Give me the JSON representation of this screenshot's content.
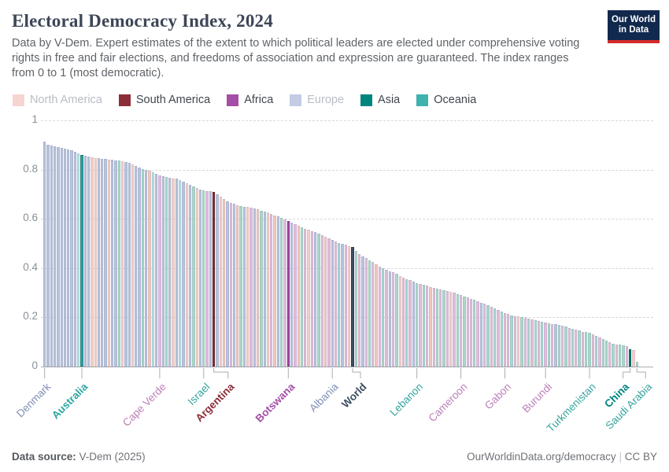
{
  "header": {
    "title": "Electoral Democracy Index, 2024",
    "subtitle": "Data by V-Dem. Expert estimates of the extent to which political leaders are elected under comprehensive voting rights in free and fair elections, and freedoms of association and expression are guaranteed. The index ranges from 0 to 1 (most democratic).",
    "logo": {
      "line1": "Our World",
      "line2": "in Data"
    }
  },
  "legend": {
    "items": [
      {
        "label": "North America",
        "color": "#f6d5d0",
        "muted": true
      },
      {
        "label": "South America",
        "color": "#8c2e39",
        "muted": false
      },
      {
        "label": "Africa",
        "color": "#a54ea6",
        "muted": false
      },
      {
        "label": "Europe",
        "color": "#c3cce4",
        "muted": true
      },
      {
        "label": "Asia",
        "color": "#00847e",
        "muted": false
      },
      {
        "label": "Oceania",
        "color": "#3eb2ac",
        "muted": false
      }
    ]
  },
  "footer": {
    "source_label": "Data source:",
    "source_value": "V-Dem (2025)",
    "url": "OurWorldinData.org/democracy",
    "separator": "|",
    "license": "CC BY"
  },
  "chart_data": {
    "type": "bar",
    "title": "Electoral Democracy Index, 2024",
    "xlabel": "",
    "ylabel": "",
    "ylim": [
      0,
      1
    ],
    "yticks": [
      "0",
      "0.2",
      "0.4",
      "0.6",
      "0.8",
      "1"
    ],
    "grid": "dashed-horizontal",
    "legend_position": "top-left",
    "palette": {
      "NA": {
        "faded": "#f1cfc8",
        "full": "#f6d4ce",
        "text": "#e5a79d"
      },
      "SA": {
        "faded": "#eec6bf",
        "full": "#8c2e39",
        "text": "#8c2e39"
      },
      "AF": {
        "faded": "#dfbddc",
        "full": "#a54ea6",
        "text": "#bc7fba"
      },
      "EU": {
        "faded": "#b8c3dc",
        "full": "#c3cce4",
        "text": "#7f8fb7"
      },
      "AS": {
        "faded": "#a9d6ca",
        "full": "#00847e",
        "text": "#35a49d"
      },
      "OC": {
        "faded": "#b5dee0",
        "full": "#2da7a3",
        "text": "#2da7a3"
      },
      "WLD": {
        "faded": "#3d4e63",
        "full": "#3d4e63",
        "text": "#3d4e63"
      }
    },
    "bars": [
      [
        0.915,
        "EU"
      ],
      [
        0.902,
        "EU"
      ],
      [
        0.898,
        "EU"
      ],
      [
        0.895,
        "EU"
      ],
      [
        0.892,
        "EU"
      ],
      [
        0.889,
        "EU"
      ],
      [
        0.886,
        "EU"
      ],
      [
        0.882,
        "EU"
      ],
      [
        0.878,
        "EU"
      ],
      [
        0.872,
        "EU"
      ],
      [
        0.865,
        "OC"
      ],
      [
        0.858,
        "OC"
      ],
      [
        0.855,
        "EU"
      ],
      [
        0.852,
        "EU"
      ],
      [
        0.85,
        "NA"
      ],
      [
        0.848,
        "NA"
      ],
      [
        0.846,
        "EU"
      ],
      [
        0.845,
        "EU"
      ],
      [
        0.843,
        "EU"
      ],
      [
        0.841,
        "NA"
      ],
      [
        0.84,
        "EU"
      ],
      [
        0.838,
        "EU"
      ],
      [
        0.836,
        "AS"
      ],
      [
        0.834,
        "NA"
      ],
      [
        0.832,
        "EU"
      ],
      [
        0.828,
        "EU"
      ],
      [
        0.822,
        "NA"
      ],
      [
        0.815,
        "EU"
      ],
      [
        0.808,
        "EU"
      ],
      [
        0.802,
        "AS"
      ],
      [
        0.798,
        "EU"
      ],
      [
        0.795,
        "SA"
      ],
      [
        0.79,
        "OC"
      ],
      [
        0.783,
        "EU"
      ],
      [
        0.775,
        "AF"
      ],
      [
        0.772,
        "EU"
      ],
      [
        0.77,
        "AS"
      ],
      [
        0.768,
        "EU"
      ],
      [
        0.765,
        "NA"
      ],
      [
        0.762,
        "EU"
      ],
      [
        0.758,
        "OC"
      ],
      [
        0.752,
        "EU"
      ],
      [
        0.745,
        "NA"
      ],
      [
        0.738,
        "EU"
      ],
      [
        0.732,
        "AS"
      ],
      [
        0.726,
        "NA"
      ],
      [
        0.72,
        "EU"
      ],
      [
        0.715,
        "AS"
      ],
      [
        0.713,
        "AF"
      ],
      [
        0.712,
        "EU"
      ],
      [
        0.71,
        "SA"
      ],
      [
        0.7,
        "EU"
      ],
      [
        0.69,
        "NA"
      ],
      [
        0.68,
        "SA"
      ],
      [
        0.672,
        "EU"
      ],
      [
        0.665,
        "AF"
      ],
      [
        0.66,
        "EU"
      ],
      [
        0.655,
        "SA"
      ],
      [
        0.652,
        "AS"
      ],
      [
        0.65,
        "EU"
      ],
      [
        0.648,
        "NA"
      ],
      [
        0.645,
        "AF"
      ],
      [
        0.642,
        "EU"
      ],
      [
        0.638,
        "SA"
      ],
      [
        0.634,
        "AS"
      ],
      [
        0.63,
        "EU"
      ],
      [
        0.625,
        "NA"
      ],
      [
        0.62,
        "AF"
      ],
      [
        0.615,
        "SA"
      ],
      [
        0.61,
        "EU"
      ],
      [
        0.603,
        "AS"
      ],
      [
        0.597,
        "AF"
      ],
      [
        0.59,
        "AF"
      ],
      [
        0.584,
        "EU"
      ],
      [
        0.578,
        "AF"
      ],
      [
        0.572,
        "SA"
      ],
      [
        0.566,
        "AS"
      ],
      [
        0.56,
        "AF"
      ],
      [
        0.555,
        "NA"
      ],
      [
        0.55,
        "AF"
      ],
      [
        0.545,
        "EU"
      ],
      [
        0.54,
        "AS"
      ],
      [
        0.534,
        "AF"
      ],
      [
        0.528,
        "SA"
      ],
      [
        0.521,
        "AF"
      ],
      [
        0.514,
        "EU"
      ],
      [
        0.508,
        "AF"
      ],
      [
        0.503,
        "AS"
      ],
      [
        0.499,
        "EU"
      ],
      [
        0.495,
        "AF"
      ],
      [
        0.49,
        "NA"
      ],
      [
        0.486,
        "WLD"
      ],
      [
        0.47,
        "AS"
      ],
      [
        0.458,
        "AF"
      ],
      [
        0.448,
        "EU"
      ],
      [
        0.44,
        "AF"
      ],
      [
        0.432,
        "AS"
      ],
      [
        0.424,
        "AF"
      ],
      [
        0.415,
        "SA"
      ],
      [
        0.406,
        "AF"
      ],
      [
        0.398,
        "AS"
      ],
      [
        0.392,
        "AF"
      ],
      [
        0.387,
        "EU"
      ],
      [
        0.382,
        "AF"
      ],
      [
        0.376,
        "AS"
      ],
      [
        0.369,
        "NA"
      ],
      [
        0.362,
        "AF"
      ],
      [
        0.355,
        "AS"
      ],
      [
        0.35,
        "AF"
      ],
      [
        0.345,
        "EU"
      ],
      [
        0.34,
        "AS"
      ],
      [
        0.336,
        "AF"
      ],
      [
        0.332,
        "AS"
      ],
      [
        0.328,
        "AF"
      ],
      [
        0.324,
        "SA"
      ],
      [
        0.32,
        "AF"
      ],
      [
        0.317,
        "AS"
      ],
      [
        0.314,
        "AF"
      ],
      [
        0.311,
        "AS"
      ],
      [
        0.308,
        "AF"
      ],
      [
        0.305,
        "NA"
      ],
      [
        0.3,
        "AF"
      ],
      [
        0.295,
        "AS"
      ],
      [
        0.29,
        "AF"
      ],
      [
        0.285,
        "AS"
      ],
      [
        0.28,
        "AF"
      ],
      [
        0.275,
        "AF"
      ],
      [
        0.27,
        "AS"
      ],
      [
        0.265,
        "AF"
      ],
      [
        0.26,
        "EU"
      ],
      [
        0.255,
        "AF"
      ],
      [
        0.25,
        "AS"
      ],
      [
        0.244,
        "AF"
      ],
      [
        0.238,
        "AS"
      ],
      [
        0.23,
        "AF"
      ],
      [
        0.224,
        "AS"
      ],
      [
        0.218,
        "AF"
      ],
      [
        0.213,
        "AF"
      ],
      [
        0.209,
        "AS"
      ],
      [
        0.206,
        "AF"
      ],
      [
        0.203,
        "NA"
      ],
      [
        0.2,
        "AS"
      ],
      [
        0.197,
        "AF"
      ],
      [
        0.194,
        "AS"
      ],
      [
        0.191,
        "AF"
      ],
      [
        0.188,
        "AS"
      ],
      [
        0.185,
        "AF"
      ],
      [
        0.182,
        "AS"
      ],
      [
        0.18,
        "AF"
      ],
      [
        0.177,
        "AS"
      ],
      [
        0.174,
        "AF"
      ],
      [
        0.171,
        "EU"
      ],
      [
        0.168,
        "AS"
      ],
      [
        0.165,
        "AF"
      ],
      [
        0.162,
        "AS"
      ],
      [
        0.158,
        "AF"
      ],
      [
        0.154,
        "AS"
      ],
      [
        0.15,
        "AF"
      ],
      [
        0.146,
        "AS"
      ],
      [
        0.142,
        "AF"
      ],
      [
        0.139,
        "AS"
      ],
      [
        0.136,
        "AS"
      ],
      [
        0.13,
        "AF"
      ],
      [
        0.124,
        "AS"
      ],
      [
        0.118,
        "AF"
      ],
      [
        0.112,
        "AS"
      ],
      [
        0.105,
        "AS"
      ],
      [
        0.098,
        "AF"
      ],
      [
        0.093,
        "AS"
      ],
      [
        0.09,
        "AF"
      ],
      [
        0.088,
        "AS"
      ],
      [
        0.086,
        "AS"
      ],
      [
        0.084,
        "AF"
      ],
      [
        0.071,
        "AS"
      ],
      [
        0.066,
        "NA"
      ],
      [
        0.02,
        "AS"
      ]
    ],
    "annotations": [
      {
        "i": 0,
        "label": "Denmark",
        "bold": false,
        "dx": 0
      },
      {
        "i": 11,
        "label": "Australia",
        "bold": true,
        "dx": 0
      },
      {
        "i": 34,
        "label": "Cape Verde",
        "bold": false,
        "dx": 0
      },
      {
        "i": 47,
        "label": "Israel",
        "bold": false,
        "dx": 0
      },
      {
        "i": 50,
        "label": "Argentina",
        "bold": true,
        "dx": 18
      },
      {
        "i": 72,
        "label": "Botswana",
        "bold": true,
        "dx": 0
      },
      {
        "i": 85,
        "label": "Albania",
        "bold": false,
        "dx": 0
      },
      {
        "i": 91,
        "label": "World",
        "bold": true,
        "dx": 10
      },
      {
        "i": 110,
        "label": "Lebanon",
        "bold": false,
        "dx": 0
      },
      {
        "i": 123,
        "label": "Cameroon",
        "bold": false,
        "dx": 0
      },
      {
        "i": 136,
        "label": "Gabon",
        "bold": false,
        "dx": 0
      },
      {
        "i": 148,
        "label": "Burundi",
        "bold": false,
        "dx": 0
      },
      {
        "i": 161,
        "label": "Turkmenistan",
        "bold": false,
        "dx": 0
      },
      {
        "i": 173,
        "label": "China",
        "bold": true,
        "dx": -9
      },
      {
        "i": 175,
        "label": "Saudi Arabia",
        "bold": false,
        "dx": 11
      }
    ]
  }
}
